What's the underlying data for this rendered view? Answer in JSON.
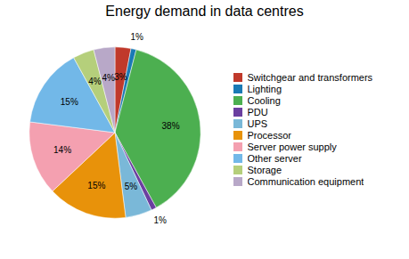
{
  "chart_data": {
    "type": "pie",
    "title": "Energy demand in data centres",
    "categories": [
      "Switchgear and transformers",
      "Lighting",
      "Cooling",
      "PDU",
      "UPS",
      "Processor",
      "Server power supply",
      "Other server",
      "Storage",
      "Communication equipment"
    ],
    "values": [
      3,
      1,
      38,
      1,
      5,
      15,
      14,
      15,
      4,
      4
    ],
    "value_labels": [
      "3%",
      "1%",
      "38%",
      "1%",
      "5%",
      "15%",
      "14%",
      "15%",
      "4%",
      "4%"
    ],
    "colors": [
      "#c0392b",
      "#1a7ab5",
      "#4caf50",
      "#6b3fa0",
      "#7ab8d8",
      "#e8920a",
      "#f4a0b0",
      "#72b8e8",
      "#b5cf7b",
      "#b8a8c8"
    ],
    "data_labels": true,
    "legend": "right"
  }
}
